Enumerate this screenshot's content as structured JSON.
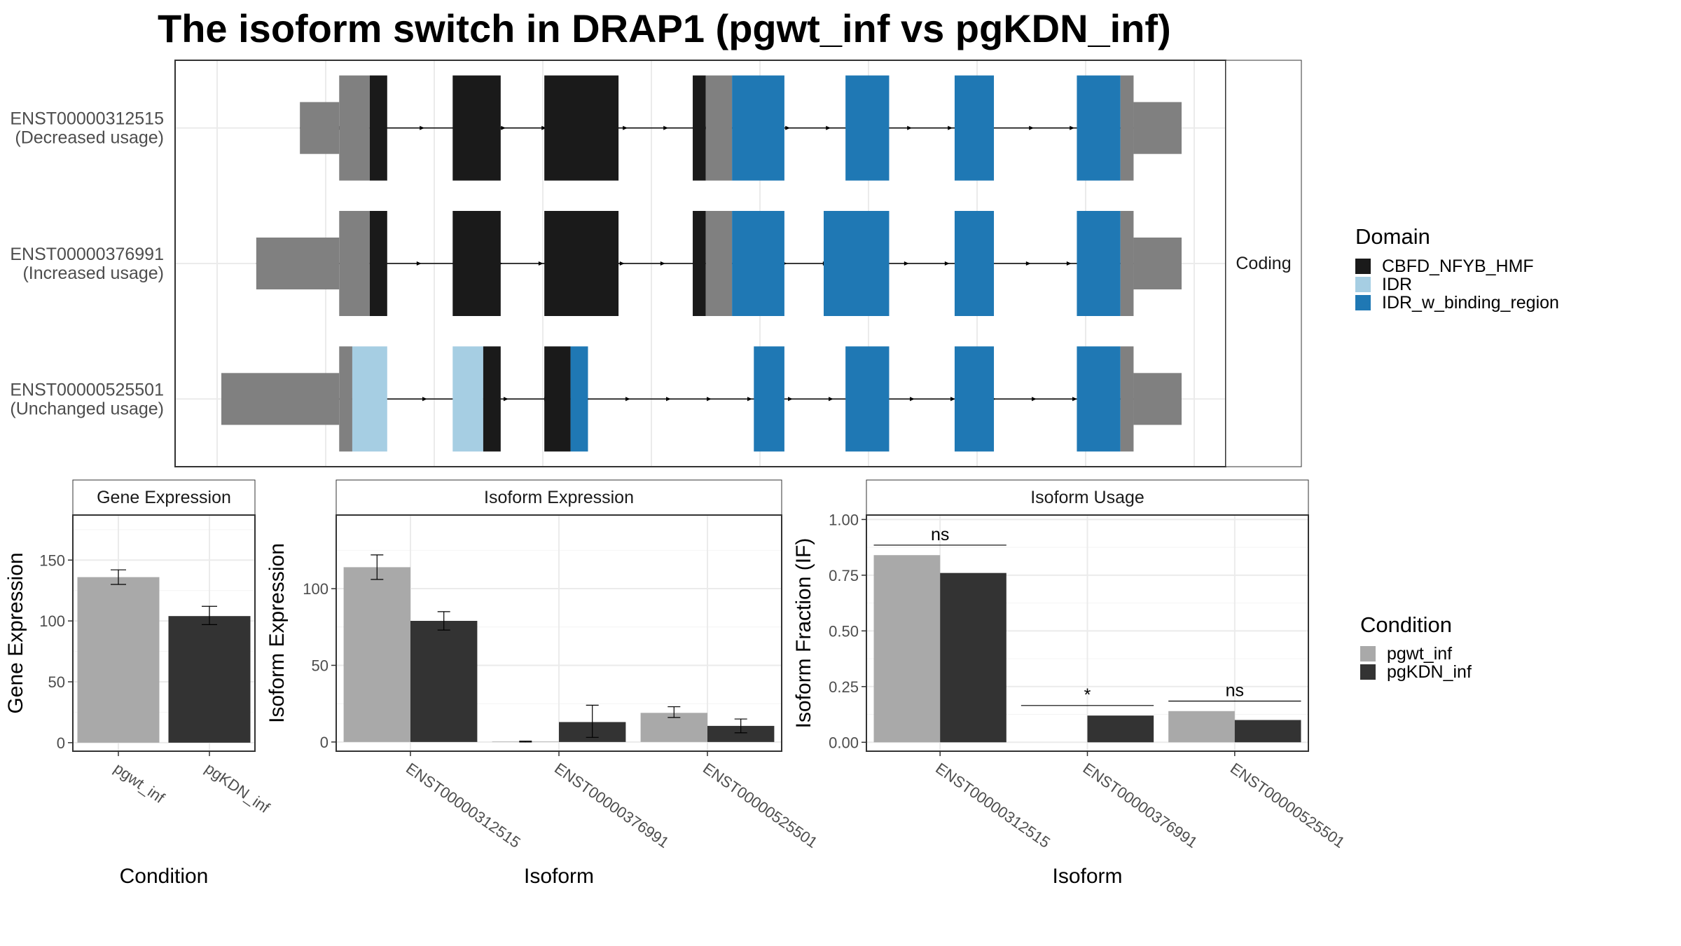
{
  "title": "The isoform switch in DRAP1 (pgwt_inf vs pgKDN_inf)",
  "colors": {
    "CBFD_NFYB_HMF": "#1a1a1a",
    "IDR": "#a6cee3",
    "IDR_w_binding_region": "#1f78b4",
    "utr": "#808080",
    "pgwt_inf": "#a9a9a9",
    "pgKDN_inf": "#333333"
  },
  "structure": {
    "strip": "Coding",
    "isoforms": [
      {
        "id": "ENST00000312515",
        "usage": "(Decreased usage)",
        "segments": [
          {
            "s": 0.18,
            "e": 0.27,
            "type": "utr"
          },
          {
            "s": 0.27,
            "e": 0.34,
            "type": "cds"
          },
          {
            "s": 0.34,
            "e": 0.38,
            "type": "CBFD_NFYB_HMF"
          },
          {
            "s": 0.53,
            "e": 0.64,
            "type": "CBFD_NFYB_HMF"
          },
          {
            "s": 0.74,
            "e": 0.91,
            "type": "CBFD_NFYB_HMF"
          },
          {
            "s": 1.08,
            "e": 1.11,
            "type": "CBFD_NFYB_HMF"
          },
          {
            "s": 1.11,
            "e": 1.17,
            "type": "cds"
          },
          {
            "s": 1.17,
            "e": 1.29,
            "type": "IDR_w_binding_region"
          },
          {
            "s": 1.43,
            "e": 1.53,
            "type": "IDR_w_binding_region"
          },
          {
            "s": 1.68,
            "e": 1.77,
            "type": "IDR_w_binding_region"
          },
          {
            "s": 1.96,
            "e": 2.06,
            "type": "IDR_w_binding_region"
          },
          {
            "s": 2.06,
            "e": 2.09,
            "type": "cds"
          },
          {
            "s": 2.09,
            "e": 2.2,
            "type": "utr"
          }
        ]
      },
      {
        "id": "ENST00000376991",
        "usage": "(Increased usage)",
        "segments": [
          {
            "s": 0.08,
            "e": 0.27,
            "type": "utr"
          },
          {
            "s": 0.27,
            "e": 0.34,
            "type": "cds"
          },
          {
            "s": 0.34,
            "e": 0.38,
            "type": "CBFD_NFYB_HMF"
          },
          {
            "s": 0.53,
            "e": 0.64,
            "type": "CBFD_NFYB_HMF"
          },
          {
            "s": 0.74,
            "e": 0.91,
            "type": "CBFD_NFYB_HMF"
          },
          {
            "s": 1.08,
            "e": 1.11,
            "type": "CBFD_NFYB_HMF"
          },
          {
            "s": 1.11,
            "e": 1.17,
            "type": "cds"
          },
          {
            "s": 1.17,
            "e": 1.29,
            "type": "IDR_w_binding_region"
          },
          {
            "s": 1.38,
            "e": 1.53,
            "type": "IDR_w_binding_region"
          },
          {
            "s": 1.68,
            "e": 1.77,
            "type": "IDR_w_binding_region"
          },
          {
            "s": 1.96,
            "e": 2.06,
            "type": "IDR_w_binding_region"
          },
          {
            "s": 2.06,
            "e": 2.09,
            "type": "cds"
          },
          {
            "s": 2.09,
            "e": 2.2,
            "type": "utr"
          }
        ]
      },
      {
        "id": "ENST00000525501",
        "usage": "(Unchanged usage)",
        "segments": [
          {
            "s": 0.0,
            "e": 0.27,
            "type": "utr"
          },
          {
            "s": 0.27,
            "e": 0.3,
            "type": "cds"
          },
          {
            "s": 0.3,
            "e": 0.38,
            "type": "IDR"
          },
          {
            "s": 0.53,
            "e": 0.6,
            "type": "IDR"
          },
          {
            "s": 0.6,
            "e": 0.64,
            "type": "CBFD_NFYB_HMF"
          },
          {
            "s": 0.74,
            "e": 0.8,
            "type": "CBFD_NFYB_HMF"
          },
          {
            "s": 0.8,
            "e": 0.84,
            "type": "IDR_w_binding_region"
          },
          {
            "s": 1.22,
            "e": 1.29,
            "type": "IDR_w_binding_region"
          },
          {
            "s": 1.43,
            "e": 1.53,
            "type": "IDR_w_binding_region"
          },
          {
            "s": 1.68,
            "e": 1.77,
            "type": "IDR_w_binding_region"
          },
          {
            "s": 1.96,
            "e": 2.06,
            "type": "IDR_w_binding_region"
          },
          {
            "s": 2.06,
            "e": 2.09,
            "type": "cds"
          },
          {
            "s": 2.09,
            "e": 2.2,
            "type": "utr"
          }
        ]
      }
    ]
  },
  "legend_domain": {
    "title": "Domain",
    "items": [
      "CBFD_NFYB_HMF",
      "IDR",
      "IDR_w_binding_region"
    ]
  },
  "legend_condition": {
    "title": "Condition",
    "items": [
      "pgwt_inf",
      "pgKDN_inf"
    ]
  },
  "chart_data": [
    {
      "type": "bar",
      "strip": "Gene Expression",
      "xlabel": "Condition",
      "ylabel": "Gene Expression",
      "categories": [
        "pgwt_inf",
        "pgKDN_inf"
      ],
      "values": [
        136,
        104
      ],
      "errors": [
        [
          130,
          142
        ],
        [
          97,
          112
        ]
      ],
      "ylim": [
        -7,
        187
      ],
      "yticks": [
        0,
        50,
        100,
        150
      ],
      "ytick_labels": [
        "0",
        "50",
        "100",
        "150"
      ]
    },
    {
      "type": "bar",
      "strip": "Isoform Expression",
      "xlabel": "Isoform",
      "ylabel": "Isoform Expression",
      "categories": [
        "ENST00000312515",
        "ENST00000376991",
        "ENST00000525501"
      ],
      "series": [
        {
          "name": "pgwt_inf",
          "values": [
            114,
            0.3,
            19
          ],
          "errors": [
            [
              106,
              122
            ],
            [
              0,
              0.6
            ],
            [
              16,
              23
            ]
          ]
        },
        {
          "name": "pgKDN_inf",
          "values": [
            79,
            13,
            10.5
          ],
          "errors": [
            [
              73,
              85
            ],
            [
              3,
              24
            ],
            [
              6,
              15
            ]
          ]
        }
      ],
      "ylim": [
        -6,
        148
      ],
      "yticks": [
        0,
        50,
        100
      ],
      "ytick_labels": [
        "0",
        "50",
        "100"
      ]
    },
    {
      "type": "bar",
      "strip": "Isoform Usage",
      "xlabel": "Isoform",
      "ylabel": "Isoform Fraction (IF)",
      "categories": [
        "ENST00000312515",
        "ENST00000376991",
        "ENST00000525501"
      ],
      "series": [
        {
          "name": "pgwt_inf",
          "values": [
            0.84,
            0.0,
            0.14
          ]
        },
        {
          "name": "pgKDN_inf",
          "values": [
            0.76,
            0.12,
            0.1
          ]
        }
      ],
      "significance": [
        {
          "label": "ns",
          "y": 0.885
        },
        {
          "label": "*",
          "y": 0.165
        },
        {
          "label": "ns",
          "y": 0.185
        }
      ],
      "ylim": [
        -0.04,
        1.02
      ],
      "yticks": [
        0,
        0.25,
        0.5,
        0.75,
        1.0
      ],
      "ytick_labels": [
        "0.00",
        "0.25",
        "0.50",
        "0.75",
        "1.00"
      ]
    }
  ]
}
